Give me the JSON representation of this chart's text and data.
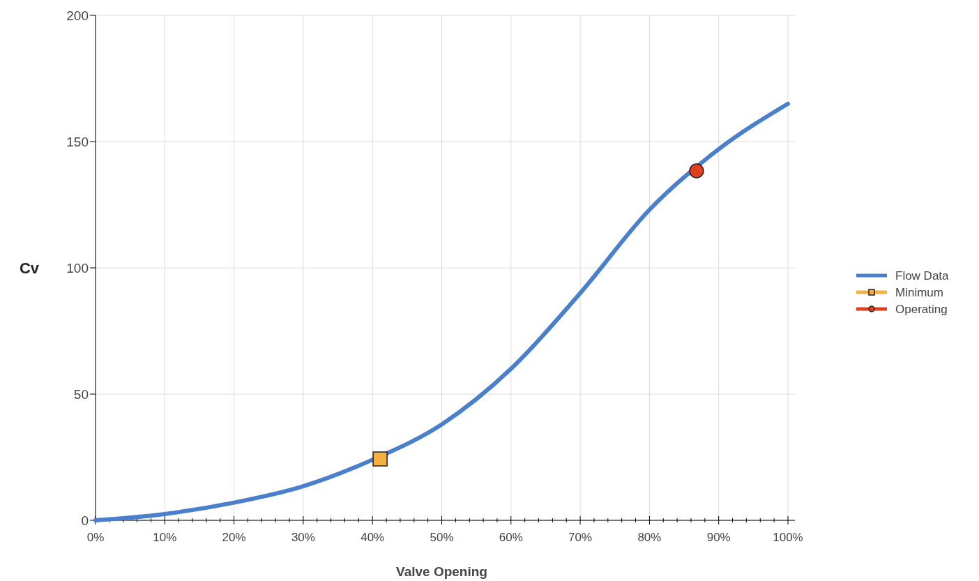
{
  "chart_data": {
    "type": "line",
    "xlabel": "Valve Opening",
    "ylabel": "Cv",
    "xlim": [
      0,
      100
    ],
    "ylim": [
      0,
      200
    ],
    "xticks": [
      {
        "value": 0,
        "label": "0%"
      },
      {
        "value": 2,
        "label": null
      },
      {
        "value": 4,
        "label": null
      },
      {
        "value": 6,
        "label": null
      },
      {
        "value": 8,
        "label": null
      },
      {
        "value": 10,
        "label": "10%"
      },
      {
        "value": 12,
        "label": null
      },
      {
        "value": 14,
        "label": null
      },
      {
        "value": 16,
        "label": null
      },
      {
        "value": 18,
        "label": null
      },
      {
        "value": 20,
        "label": "20%"
      },
      {
        "value": 22,
        "label": null
      },
      {
        "value": 24,
        "label": null
      },
      {
        "value": 26,
        "label": null
      },
      {
        "value": 28,
        "label": null
      },
      {
        "value": 30,
        "label": "30%"
      },
      {
        "value": 32,
        "label": null
      },
      {
        "value": 34,
        "label": null
      },
      {
        "value": 36,
        "label": null
      },
      {
        "value": 38,
        "label": null
      },
      {
        "value": 40,
        "label": "40%"
      },
      {
        "value": 42,
        "label": null
      },
      {
        "value": 44,
        "label": null
      },
      {
        "value": 46,
        "label": null
      },
      {
        "value": 48,
        "label": null
      },
      {
        "value": 50,
        "label": "50%"
      },
      {
        "value": 52,
        "label": null
      },
      {
        "value": 54,
        "label": null
      },
      {
        "value": 56,
        "label": null
      },
      {
        "value": 58,
        "label": null
      },
      {
        "value": 60,
        "label": "60%"
      },
      {
        "value": 62,
        "label": null
      },
      {
        "value": 64,
        "label": null
      },
      {
        "value": 66,
        "label": null
      },
      {
        "value": 68,
        "label": null
      },
      {
        "value": 70,
        "label": "70%"
      },
      {
        "value": 72,
        "label": null
      },
      {
        "value": 74,
        "label": null
      },
      {
        "value": 76,
        "label": null
      },
      {
        "value": 78,
        "label": null
      },
      {
        "value": 80,
        "label": "80%"
      },
      {
        "value": 82,
        "label": null
      },
      {
        "value": 84,
        "label": null
      },
      {
        "value": 86,
        "label": null
      },
      {
        "value": 88,
        "label": null
      },
      {
        "value": 90,
        "label": "90%"
      },
      {
        "value": 92,
        "label": null
      },
      {
        "value": 94,
        "label": null
      },
      {
        "value": 96,
        "label": null
      },
      {
        "value": 98,
        "label": null
      },
      {
        "value": 100,
        "label": "100%"
      }
    ],
    "yticks": [
      0,
      50,
      100,
      150,
      200
    ],
    "grid": true,
    "legend": "right",
    "series": [
      {
        "name": "Flow Data",
        "color": "#4a7fcb",
        "marker": "none",
        "x": [
          0,
          10,
          20,
          30,
          40,
          50,
          60,
          70,
          80,
          90,
          100
        ],
        "values": [
          0,
          2.5,
          7,
          13.5,
          24,
          38,
          60,
          90,
          123,
          147,
          165
        ]
      },
      {
        "name": "Minimum",
        "type": "scatter",
        "color": "#f5b041",
        "marker": "square",
        "x": [
          41.1
        ],
        "values": [
          24.3
        ]
      },
      {
        "name": "Operating",
        "type": "scatter",
        "color": "#e0401c",
        "marker": "circle",
        "x": [
          86.8
        ],
        "values": [
          138.4
        ]
      }
    ]
  }
}
